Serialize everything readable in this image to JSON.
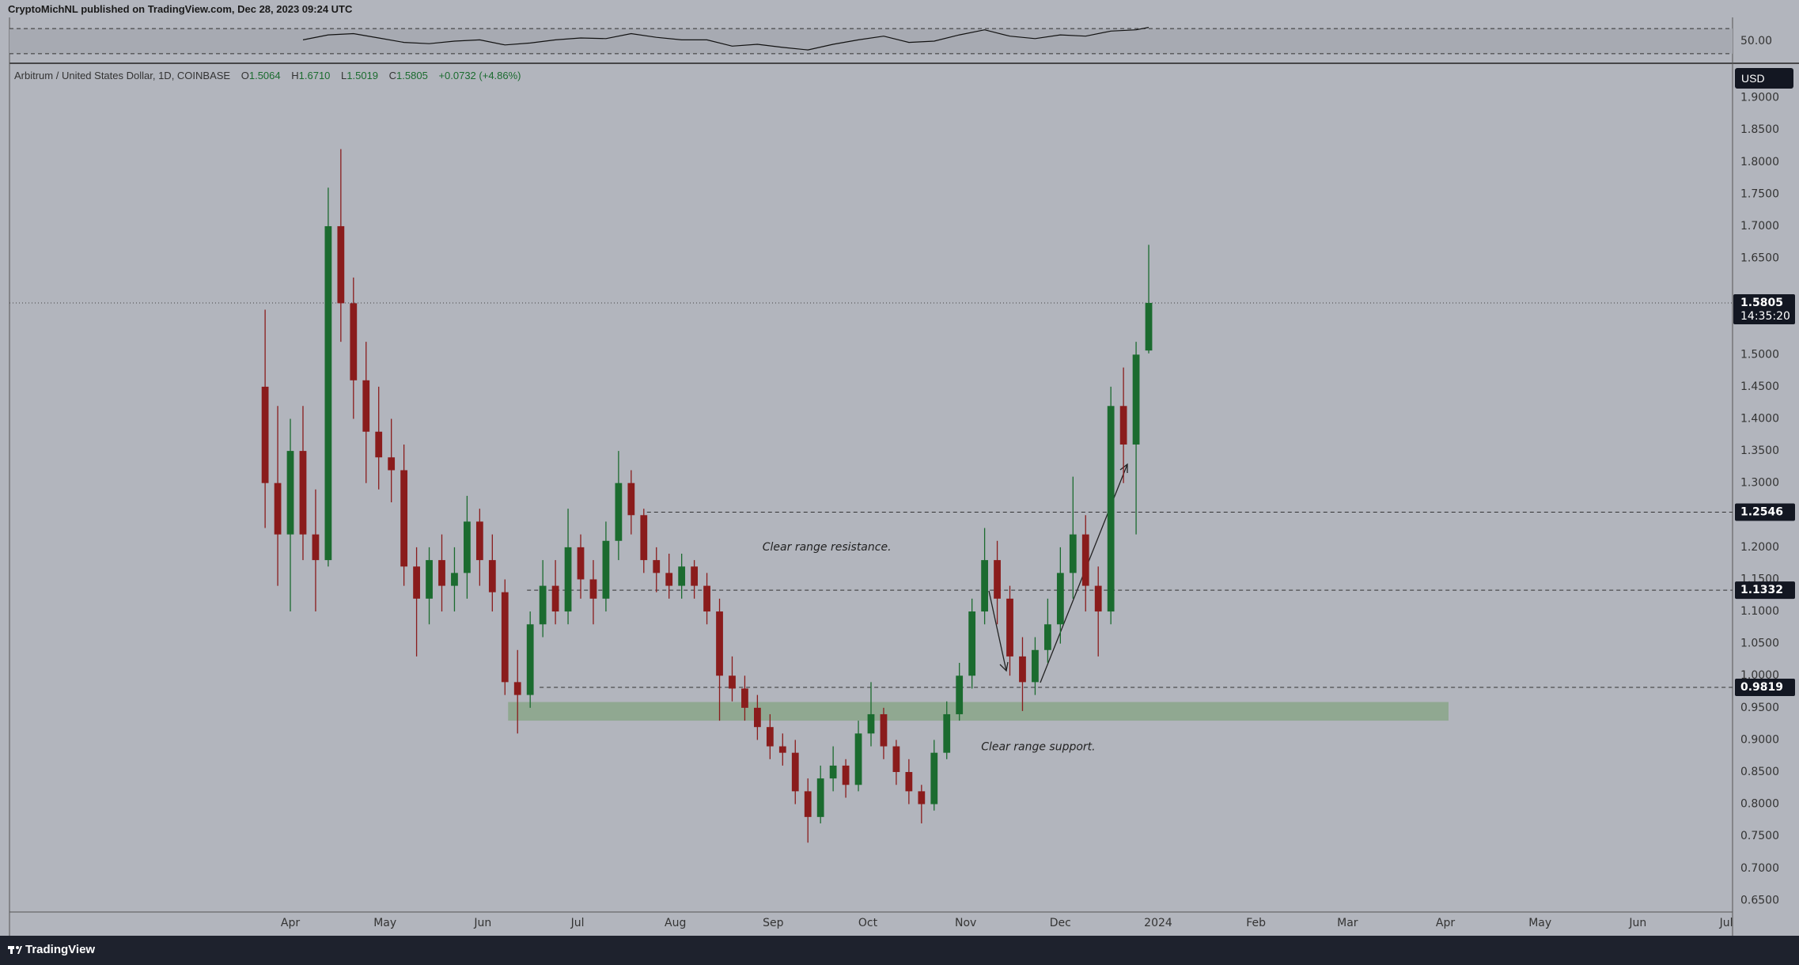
{
  "header": {
    "publisher": "CryptoMichNL published on TradingView.com, Dec 28, 2023 09:24 UTC",
    "brand": "TradingView"
  },
  "chart_data": {
    "type": "candlestick",
    "title": "Arbitrum / United States Dollar, 1D, COINBASE",
    "ohlc_legend": [
      {
        "label": "O",
        "value": "1.5064"
      },
      {
        "label": "H",
        "value": "1.6710"
      },
      {
        "label": "L",
        "value": "1.5019"
      },
      {
        "label": "C",
        "value": "1.5805"
      }
    ],
    "change": "+0.0732 (+4.86%)",
    "currency": "USD",
    "x": [
      82,
      86,
      90,
      94,
      98,
      102,
      106,
      110,
      114,
      118,
      122,
      126,
      130,
      134,
      138,
      142,
      146,
      150,
      154,
      158,
      162,
      166,
      170,
      174,
      178,
      182,
      186,
      190,
      194,
      198,
      202,
      206,
      210,
      214,
      218,
      222,
      226,
      230,
      234,
      238,
      242,
      246,
      250,
      254,
      258,
      262,
      266,
      270,
      274,
      278,
      282,
      286,
      290,
      294,
      298,
      302,
      306,
      310,
      314,
      318,
      322,
      326,
      330,
      334,
      338,
      342,
      346,
      350,
      354,
      358,
      362
    ],
    "open": [
      1.45,
      1.3,
      1.22,
      1.35,
      1.22,
      1.18,
      1.7,
      1.58,
      1.46,
      1.38,
      1.34,
      1.32,
      1.17,
      1.12,
      1.18,
      1.14,
      1.16,
      1.24,
      1.18,
      1.13,
      0.99,
      0.97,
      1.08,
      1.14,
      1.1,
      1.2,
      1.15,
      1.12,
      1.21,
      1.3,
      1.25,
      1.18,
      1.16,
      1.14,
      1.17,
      1.14,
      1.1,
      1.0,
      0.98,
      0.95,
      0.92,
      0.89,
      0.88,
      0.82,
      0.78,
      0.84,
      0.86,
      0.83,
      0.91,
      0.94,
      0.89,
      0.85,
      0.82,
      0.8,
      0.88,
      0.94,
      1.0,
      1.1,
      1.18,
      1.12,
      1.03,
      0.99,
      1.04,
      1.08,
      1.16,
      1.22,
      1.14,
      1.1,
      1.42,
      1.36,
      1.5064
    ],
    "high": [
      1.57,
      1.42,
      1.4,
      1.42,
      1.29,
      1.76,
      1.82,
      1.62,
      1.52,
      1.45,
      1.4,
      1.36,
      1.2,
      1.2,
      1.22,
      1.2,
      1.28,
      1.26,
      1.22,
      1.15,
      1.04,
      1.1,
      1.18,
      1.18,
      1.26,
      1.22,
      1.18,
      1.24,
      1.35,
      1.32,
      1.26,
      1.2,
      1.19,
      1.19,
      1.18,
      1.16,
      1.12,
      1.03,
      1.0,
      0.97,
      0.94,
      0.91,
      0.9,
      0.84,
      0.86,
      0.89,
      0.87,
      0.93,
      0.99,
      0.95,
      0.9,
      0.87,
      0.83,
      0.9,
      0.96,
      1.02,
      1.12,
      1.23,
      1.21,
      1.14,
      1.06,
      1.06,
      1.12,
      1.2,
      1.31,
      1.25,
      1.17,
      1.45,
      1.48,
      1.52,
      1.671
    ],
    "low": [
      1.23,
      1.14,
      1.1,
      1.18,
      1.1,
      1.17,
      1.52,
      1.4,
      1.3,
      1.29,
      1.27,
      1.14,
      1.03,
      1.08,
      1.1,
      1.1,
      1.12,
      1.14,
      1.1,
      0.97,
      0.91,
      0.95,
      1.06,
      1.08,
      1.08,
      1.12,
      1.08,
      1.1,
      1.18,
      1.22,
      1.16,
      1.13,
      1.12,
      1.12,
      1.12,
      1.08,
      0.93,
      0.96,
      0.93,
      0.9,
      0.87,
      0.86,
      0.8,
      0.74,
      0.77,
      0.82,
      0.81,
      0.82,
      0.89,
      0.87,
      0.83,
      0.8,
      0.77,
      0.79,
      0.87,
      0.93,
      0.98,
      1.08,
      1.08,
      1.0,
      0.945,
      0.97,
      1.02,
      1.05,
      1.12,
      1.1,
      1.03,
      1.08,
      1.3,
      1.22,
      1.5019
    ],
    "close": [
      1.3,
      1.22,
      1.35,
      1.22,
      1.18,
      1.7,
      1.58,
      1.46,
      1.38,
      1.34,
      1.32,
      1.17,
      1.12,
      1.18,
      1.14,
      1.16,
      1.24,
      1.18,
      1.13,
      0.99,
      0.97,
      1.08,
      1.14,
      1.1,
      1.2,
      1.15,
      1.12,
      1.21,
      1.3,
      1.25,
      1.18,
      1.16,
      1.14,
      1.17,
      1.14,
      1.1,
      1.0,
      0.98,
      0.95,
      0.92,
      0.89,
      0.88,
      0.82,
      0.78,
      0.84,
      0.86,
      0.83,
      0.91,
      0.94,
      0.89,
      0.85,
      0.82,
      0.8,
      0.88,
      0.94,
      1.0,
      1.1,
      1.18,
      1.12,
      1.03,
      0.99,
      1.04,
      1.08,
      1.16,
      1.22,
      1.14,
      1.1,
      1.42,
      1.36,
      1.5,
      1.5805
    ],
    "up_color": "#1b6b2f",
    "down_color": "#8a1c1c",
    "xlim": [
      1,
      547
    ],
    "xticks": [
      {
        "value": 90,
        "label": "Apr"
      },
      {
        "value": 120,
        "label": "May"
      },
      {
        "value": 151,
        "label": "Jun"
      },
      {
        "value": 181,
        "label": "Jul"
      },
      {
        "value": 212,
        "label": "Aug"
      },
      {
        "value": 243,
        "label": "Sep"
      },
      {
        "value": 273,
        "label": "Oct"
      },
      {
        "value": 304,
        "label": "Nov"
      },
      {
        "value": 334,
        "label": "Dec"
      },
      {
        "value": 365,
        "label": "2024"
      },
      {
        "value": 396,
        "label": "Feb"
      },
      {
        "value": 425,
        "label": "Mar"
      },
      {
        "value": 456,
        "label": "Apr"
      },
      {
        "value": 486,
        "label": "May"
      },
      {
        "value": 517,
        "label": "Jun"
      },
      {
        "value": 545,
        "label": "Jul"
      }
    ],
    "ylim": [
      0.632,
      1.95
    ],
    "yticks": [
      {
        "value": 0.65,
        "label": "0.6500"
      },
      {
        "value": 0.7,
        "label": "0.7000"
      },
      {
        "value": 0.75,
        "label": "0.7500"
      },
      {
        "value": 0.8,
        "label": "0.8000"
      },
      {
        "value": 0.85,
        "label": "0.8500"
      },
      {
        "value": 0.9,
        "label": "0.9000"
      },
      {
        "value": 0.95,
        "label": "0.9500"
      },
      {
        "value": 1.0,
        "label": "1.0000"
      },
      {
        "value": 1.05,
        "label": "1.0500"
      },
      {
        "value": 1.1,
        "label": "1.1000"
      },
      {
        "value": 1.15,
        "label": "1.1500"
      },
      {
        "value": 1.2,
        "label": "1.2000"
      },
      {
        "value": 1.25,
        "label": "1.2500"
      },
      {
        "value": 1.3,
        "label": "1.3000"
      },
      {
        "value": 1.35,
        "label": "1.3500"
      },
      {
        "value": 1.4,
        "label": "1.4000"
      },
      {
        "value": 1.45,
        "label": "1.4500"
      },
      {
        "value": 1.5,
        "label": "1.5000"
      },
      {
        "value": 1.65,
        "label": "1.6500"
      },
      {
        "value": 1.7,
        "label": "1.7000"
      },
      {
        "value": 1.75,
        "label": "1.7500"
      },
      {
        "value": 1.8,
        "label": "1.8000"
      },
      {
        "value": 1.85,
        "label": "1.8500"
      },
      {
        "value": 1.9,
        "label": "1.9000"
      }
    ],
    "last_price": 1.5805,
    "countdown": "14:35:20",
    "levels": [
      {
        "value": 1.2546,
        "start": 203
      },
      {
        "value": 1.1332,
        "start": 165
      },
      {
        "value": 0.9819,
        "start": 169
      }
    ],
    "zone": {
      "low": 0.93,
      "high": 0.959,
      "start": 159,
      "end": 457,
      "color": "#8aa68a"
    },
    "annotations": [
      {
        "text": "Clear range resistance.",
        "x": 260,
        "y": 1.2
      },
      {
        "text": "Clear range support.",
        "x": 327,
        "y": 0.889
      }
    ],
    "rsi": {
      "x": [
        94,
        102,
        110,
        118,
        126,
        134,
        142,
        150,
        158,
        166,
        174,
        182,
        190,
        198,
        206,
        214,
        222,
        230,
        238,
        246,
        254,
        262,
        270,
        278,
        286,
        294,
        302,
        310,
        318,
        326,
        334,
        342,
        350,
        358,
        362
      ],
      "values": [
        52,
        60,
        62,
        55,
        48,
        46,
        50,
        52,
        44,
        47,
        52,
        55,
        54,
        62,
        56,
        52,
        52,
        42,
        45,
        40,
        36,
        45,
        52,
        58,
        48,
        50,
        60,
        68,
        58,
        54,
        60,
        58,
        66,
        68,
        72
      ],
      "ylim": [
        21,
        79
      ],
      "yticks": [
        {
          "value": 50,
          "label": "50.00"
        }
      ],
      "bands": [
        30,
        70
      ],
      "color": "#111111"
    }
  }
}
